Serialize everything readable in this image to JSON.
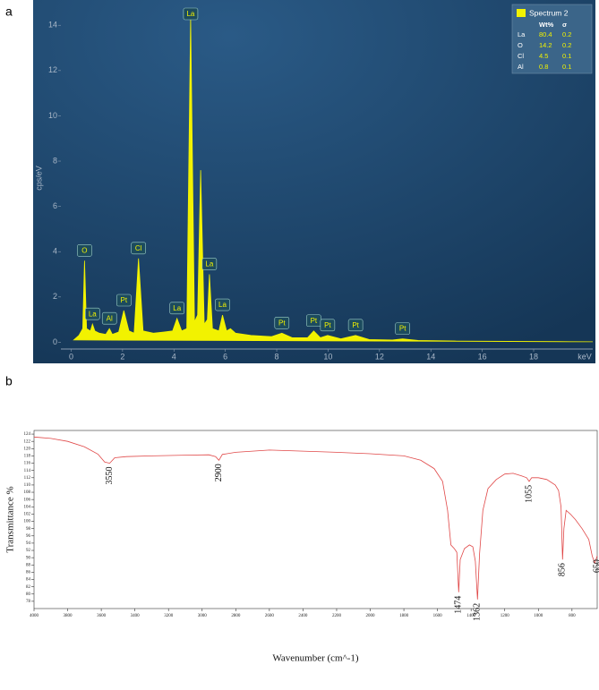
{
  "chart_data": [
    {
      "panel": "a",
      "type": "area",
      "y_label": "cps/eV",
      "x_label": "keV",
      "x": [
        0.1,
        0.3,
        0.45,
        0.52,
        0.6,
        0.75,
        0.83,
        0.92,
        1.1,
        1.35,
        1.49,
        1.6,
        1.85,
        2.05,
        2.25,
        2.45,
        2.62,
        2.8,
        3.2,
        3.6,
        3.95,
        4.12,
        4.3,
        4.5,
        4.65,
        4.8,
        4.92,
        5.04,
        5.18,
        5.3,
        5.38,
        5.5,
        5.75,
        5.89,
        6.05,
        6.2,
        6.4,
        7,
        7.8,
        8.2,
        8.6,
        9.2,
        9.44,
        9.7,
        9.98,
        10.5,
        11.07,
        11.6,
        12.5,
        12.9,
        13.5,
        15,
        17,
        19,
        20.3
      ],
      "series": [
        {
          "name": "Spectrum 2",
          "color": "#f2f200",
          "values": [
            0.1,
            0.3,
            0.6,
            3.6,
            0.6,
            0.5,
            0.8,
            0.5,
            0.4,
            0.35,
            0.6,
            0.35,
            0.45,
            1.4,
            0.5,
            0.4,
            3.7,
            0.5,
            0.4,
            0.45,
            0.5,
            1.05,
            0.5,
            0.6,
            14.4,
            0.9,
            1.2,
            7.6,
            0.8,
            1.0,
            3.0,
            0.6,
            0.5,
            1.2,
            0.5,
            0.6,
            0.4,
            0.3,
            0.25,
            0.4,
            0.2,
            0.2,
            0.5,
            0.2,
            0.3,
            0.15,
            0.3,
            0.12,
            0.1,
            0.15,
            0.08,
            0.05,
            0.04,
            0.03,
            0.02
          ]
        }
      ],
      "xlim": [
        -0.4,
        20.3
      ],
      "ylim": [
        -0.3,
        14.8
      ],
      "xticks": [
        0,
        2,
        4,
        6,
        8,
        10,
        12,
        14,
        16,
        18
      ],
      "yticks": [
        0,
        2,
        4,
        6,
        8,
        10,
        12,
        14
      ],
      "peak_labels": [
        {
          "text": "O",
          "x": 0.52
        },
        {
          "text": "La",
          "x": 0.83
        },
        {
          "text": "Al",
          "x": 1.49
        },
        {
          "text": "Pt",
          "x": 2.05
        },
        {
          "text": "Cl",
          "x": 2.62
        },
        {
          "text": "La",
          "x": 4.12
        },
        {
          "text": "La",
          "x": 4.65
        },
        {
          "text": "La",
          "x": 5.38
        },
        {
          "text": "La",
          "x": 5.89
        },
        {
          "text": "Pt",
          "x": 8.2
        },
        {
          "text": "Pt",
          "x": 9.44
        },
        {
          "text": "Pt",
          "x": 9.98
        },
        {
          "text": "Pt",
          "x": 11.07
        },
        {
          "text": "Pt",
          "x": 12.9
        }
      ],
      "legend_table": {
        "headers": [
          "Wt%",
          "σ"
        ],
        "rows": [
          {
            "element": "La",
            "wt": 80.4,
            "sigma": 0.2
          },
          {
            "element": "O",
            "wt": 14.2,
            "sigma": 0.2
          },
          {
            "element": "Cl",
            "wt": 4.5,
            "sigma": 0.1
          },
          {
            "element": "Al",
            "wt": 0.8,
            "sigma": 0.1
          }
        ]
      }
    },
    {
      "panel": "b",
      "type": "line",
      "y_label": "Transmittance %",
      "x_label": "Wavenumber (cm^-1)",
      "x": [
        4000,
        3900,
        3800,
        3700,
        3620,
        3580,
        3550,
        3520,
        3450,
        3300,
        3100,
        2960,
        2920,
        2900,
        2880,
        2800,
        2600,
        2400,
        2200,
        2000,
        1800,
        1700,
        1620,
        1570,
        1540,
        1520,
        1500,
        1485,
        1474,
        1465,
        1440,
        1410,
        1390,
        1375,
        1362,
        1350,
        1330,
        1300,
        1250,
        1200,
        1150,
        1100,
        1070,
        1055,
        1040,
        1000,
        950,
        900,
        880,
        865,
        856,
        848,
        835,
        810,
        780,
        740,
        700,
        680,
        665,
        650
      ],
      "series": [
        {
          "color": "#e04848",
          "values": [
            123.2,
            122.8,
            122,
            120.5,
            118.5,
            116.3,
            116,
            117.5,
            117.8,
            118,
            118.2,
            118.3,
            117.8,
            116.8,
            118.4,
            119,
            119.6,
            119.3,
            119,
            118.6,
            118,
            116.8,
            114.5,
            111,
            103,
            93.5,
            92.5,
            91.5,
            80.5,
            89.5,
            92.5,
            93.5,
            93,
            89,
            78.5,
            91,
            103,
            109,
            111.5,
            113,
            113.2,
            112.5,
            112,
            111,
            112,
            112,
            111.5,
            110,
            108.5,
            104,
            89.5,
            98,
            103,
            102,
            100.5,
            98,
            95,
            90.5,
            88.5,
            90.5
          ]
        }
      ],
      "xlim": [
        4000,
        650
      ],
      "ylim": [
        76,
        125
      ],
      "xticks": [
        4000,
        3800,
        3600,
        3400,
        3200,
        3000,
        2800,
        2600,
        2400,
        2200,
        2000,
        1800,
        1600,
        1400,
        1200,
        1000,
        800
      ],
      "yticks": [
        78,
        80,
        82,
        84,
        86,
        88,
        90,
        92,
        94,
        96,
        98,
        100,
        102,
        104,
        106,
        108,
        110,
        112,
        114,
        116,
        118,
        120,
        122,
        124
      ],
      "peak_labels": [
        3550,
        2900,
        1474,
        1362,
        1055,
        856,
        650
      ]
    }
  ]
}
